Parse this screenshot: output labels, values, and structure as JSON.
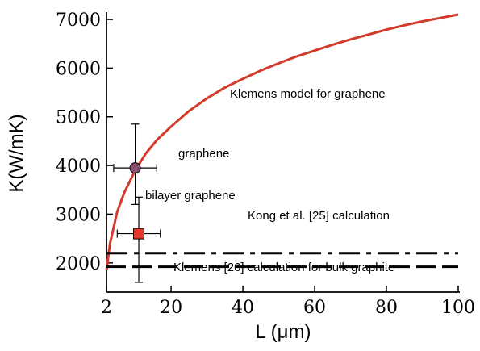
{
  "chart_data": {
    "type": "line",
    "xlabel": "L (μm)",
    "ylabel": "K(W/mK)",
    "xlim": [
      2,
      100
    ],
    "ylim": [
      1400,
      7150
    ],
    "x_ticks": [
      "2",
      "20",
      "40",
      "60",
      "80",
      "100"
    ],
    "x_tick_values": [
      2,
      20,
      40,
      60,
      80,
      100
    ],
    "y_ticks": [
      "2000",
      "3000",
      "4000",
      "5000",
      "6000",
      "7000"
    ],
    "y_tick_values": [
      2000,
      3000,
      4000,
      5000,
      6000,
      7000
    ],
    "grid": false,
    "series": [
      {
        "kind": "curve",
        "color": "#d23a2a",
        "x": [
          2,
          3,
          5,
          7,
          10,
          13,
          16,
          20,
          25,
          30,
          35,
          40,
          45,
          50,
          55,
          60,
          65,
          70,
          75,
          80,
          85,
          90,
          95,
          100
        ],
        "y": [
          1850,
          2400,
          3050,
          3450,
          3900,
          4250,
          4520,
          4800,
          5120,
          5380,
          5600,
          5780,
          5950,
          6100,
          6240,
          6360,
          6480,
          6590,
          6690,
          6790,
          6880,
          6960,
          7030,
          7100
        ]
      },
      {
        "kind": "dash-dot line",
        "color": "#000000",
        "x": [
          2,
          100
        ],
        "y": [
          2200,
          2200
        ]
      },
      {
        "kind": "dashed line",
        "color": "#000000",
        "x": [
          2,
          100
        ],
        "y": [
          1920,
          1920
        ]
      }
    ],
    "points": [
      {
        "label": "graphene",
        "marker": "circle",
        "color": "#8a4f6e",
        "x": 10,
        "y": 3950,
        "x_err": [
          4,
          16
        ],
        "y_err": [
          3200,
          4850
        ]
      },
      {
        "label": "bilayer graphene",
        "marker": "square",
        "color": "#e23a2a",
        "x": 11,
        "y": 2600,
        "x_err": [
          5,
          17
        ],
        "y_err": [
          1600,
          3350
        ]
      }
    ],
    "annotations": [
      "Klemens model for graphene",
      "graphene",
      "bilayer graphene",
      "Kong et al. [25] calculation",
      "Klemens [26] calculation for bulk graphite"
    ]
  }
}
